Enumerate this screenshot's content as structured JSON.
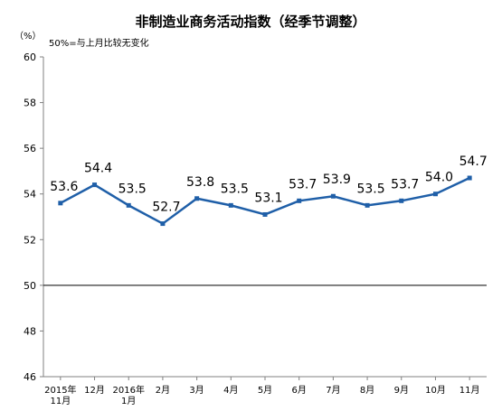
{
  "chart_data": {
    "type": "line",
    "title": "非制造业商务活动指数（经季节调整）",
    "unit": "（%）",
    "annotation": "50%=与上月比较无变化",
    "categories": [
      "2015年\n11月",
      "12月",
      "2016年\n1月",
      "2月",
      "3月",
      "4月",
      "5月",
      "6月",
      "7月",
      "8月",
      "9月",
      "10月",
      "11月"
    ],
    "series": [
      {
        "values": [
          53.6,
          54.4,
          53.5,
          52.7,
          53.8,
          53.5,
          53.1,
          53.7,
          53.9,
          53.5,
          53.7,
          54.0,
          54.7
        ]
      }
    ],
    "data_labels": [
      "53.6",
      "54.4",
      "53.5",
      "52.7",
      "53.8",
      "53.5",
      "53.1",
      "53.7",
      "53.9",
      "53.5",
      "53.7",
      "54.0",
      "54.7"
    ],
    "ylim": [
      46,
      60
    ],
    "yticks": [
      "46",
      "48",
      "50",
      "52",
      "54",
      "56",
      "58",
      "60"
    ],
    "reference_line": 50,
    "grid": false,
    "colors": {
      "line": "#1f5fa8",
      "marker": "#1f5fa8",
      "axis": "#808080",
      "reference": "#000000"
    }
  }
}
